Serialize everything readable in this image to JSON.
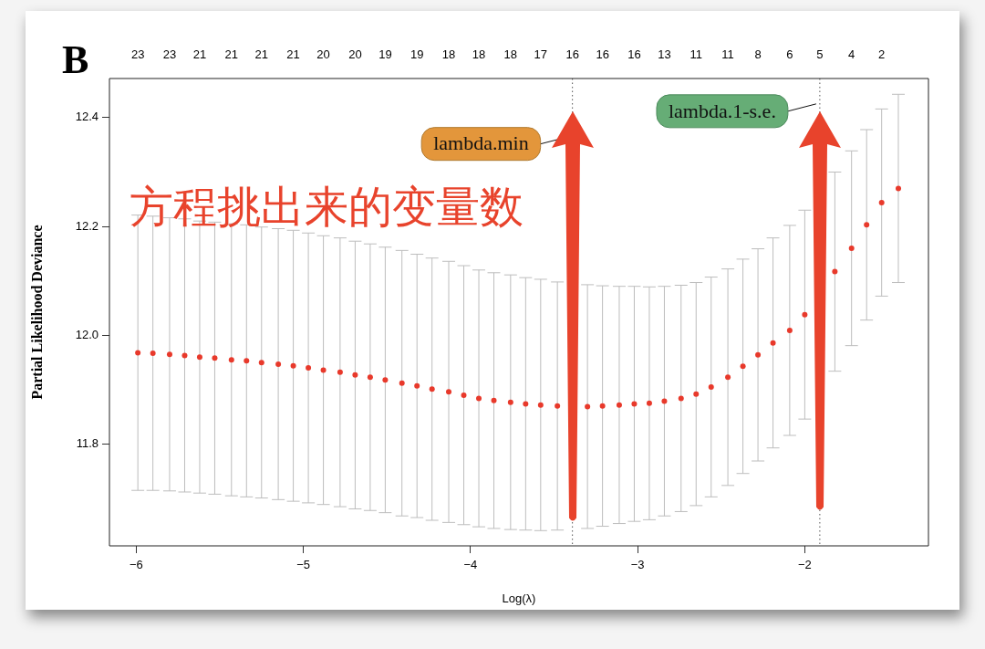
{
  "chart_data": {
    "type": "scatter",
    "xlabel": "Log(λ)",
    "ylabel": "Partial Likelihood Deviance",
    "annotations": [
      "B",
      "方程挑出来的变量数",
      "23",
      "23",
      "21",
      "21",
      "21",
      "21",
      "20",
      "20",
      "19",
      "19",
      "18",
      "18",
      "18",
      "17",
      "16",
      "16",
      "16",
      "13",
      "11",
      "11",
      "8",
      "6",
      "5",
      "4",
      "2"
    ],
    "x": [
      -5.99,
      -5.9,
      -5.8,
      -5.71,
      -5.62,
      -5.53,
      -5.43,
      -5.34,
      -5.25,
      -5.15,
      -5.06,
      -4.97,
      -4.88,
      -4.78,
      -4.69,
      -4.6,
      -4.51,
      -4.41,
      -4.32,
      -4.23,
      -4.13,
      -4.04,
      -3.95,
      -3.86,
      -3.76,
      -3.67,
      -3.58,
      -3.48,
      -3.39,
      -3.3,
      -3.21,
      -3.11,
      -3.02,
      -2.93,
      -2.84,
      -2.74,
      -2.65,
      -2.56,
      -2.46,
      -2.37,
      -2.28,
      -2.19,
      -2.09,
      -2.0,
      -1.91,
      -1.82,
      -1.72,
      -1.63,
      -1.54,
      -1.44
    ],
    "series": [
      {
        "color": "#e8392b",
        "values": [
          11.968,
          11.967,
          11.965,
          11.963,
          11.96,
          11.958,
          11.955,
          11.953,
          11.95,
          11.947,
          11.944,
          11.94,
          11.936,
          11.932,
          11.927,
          11.923,
          11.918,
          11.912,
          11.907,
          11.901,
          11.896,
          11.89,
          11.884,
          11.88,
          11.877,
          11.874,
          11.872,
          11.87,
          null,
          11.869,
          11.87,
          11.872,
          11.874,
          11.875,
          11.879,
          11.884,
          11.892,
          11.905,
          11.923,
          11.943,
          11.964,
          11.986,
          12.009,
          12.038,
          null,
          12.117,
          12.16,
          12.203,
          12.244,
          12.27
        ],
        "errors": [
          0.253,
          0.252,
          0.251,
          0.251,
          0.25,
          0.25,
          0.25,
          0.25,
          0.249,
          0.249,
          0.249,
          0.248,
          0.247,
          0.247,
          0.246,
          0.245,
          0.244,
          0.244,
          0.242,
          0.241,
          0.24,
          0.238,
          0.236,
          0.235,
          0.234,
          0.232,
          0.231,
          0.228,
          null,
          0.224,
          0.221,
          0.218,
          0.216,
          0.214,
          0.211,
          0.208,
          0.205,
          0.202,
          0.199,
          0.197,
          0.195,
          0.193,
          0.193,
          0.192,
          null,
          0.183,
          0.179,
          0.175,
          0.172,
          0.173
        ]
      }
    ],
    "xlim": [
      -6.16,
      -1.26
    ],
    "xticks": [
      {
        "value": -6,
        "label": "−6"
      },
      {
        "value": -5,
        "label": "−5"
      },
      {
        "value": -4,
        "label": "−4"
      },
      {
        "value": -3,
        "label": "−3"
      },
      {
        "value": -2,
        "label": "−2"
      }
    ],
    "ylim": [
      11.613,
      12.472
    ],
    "yticks": [
      11.8,
      {
        "value": 12.0,
        "label": "12.0"
      },
      12.2,
      12.4
    ],
    "ref_lines": [
      {
        "axis": "x",
        "value": -3.39,
        "label": "lambda.min",
        "color": "#555555",
        "line_style": "dotted"
      },
      {
        "axis": "x",
        "value": -1.91,
        "label": "lambda.1-s.e.",
        "color": "#555555",
        "line_style": "dotted"
      }
    ],
    "marker": "circle",
    "grid": false,
    "legend": false
  }
}
